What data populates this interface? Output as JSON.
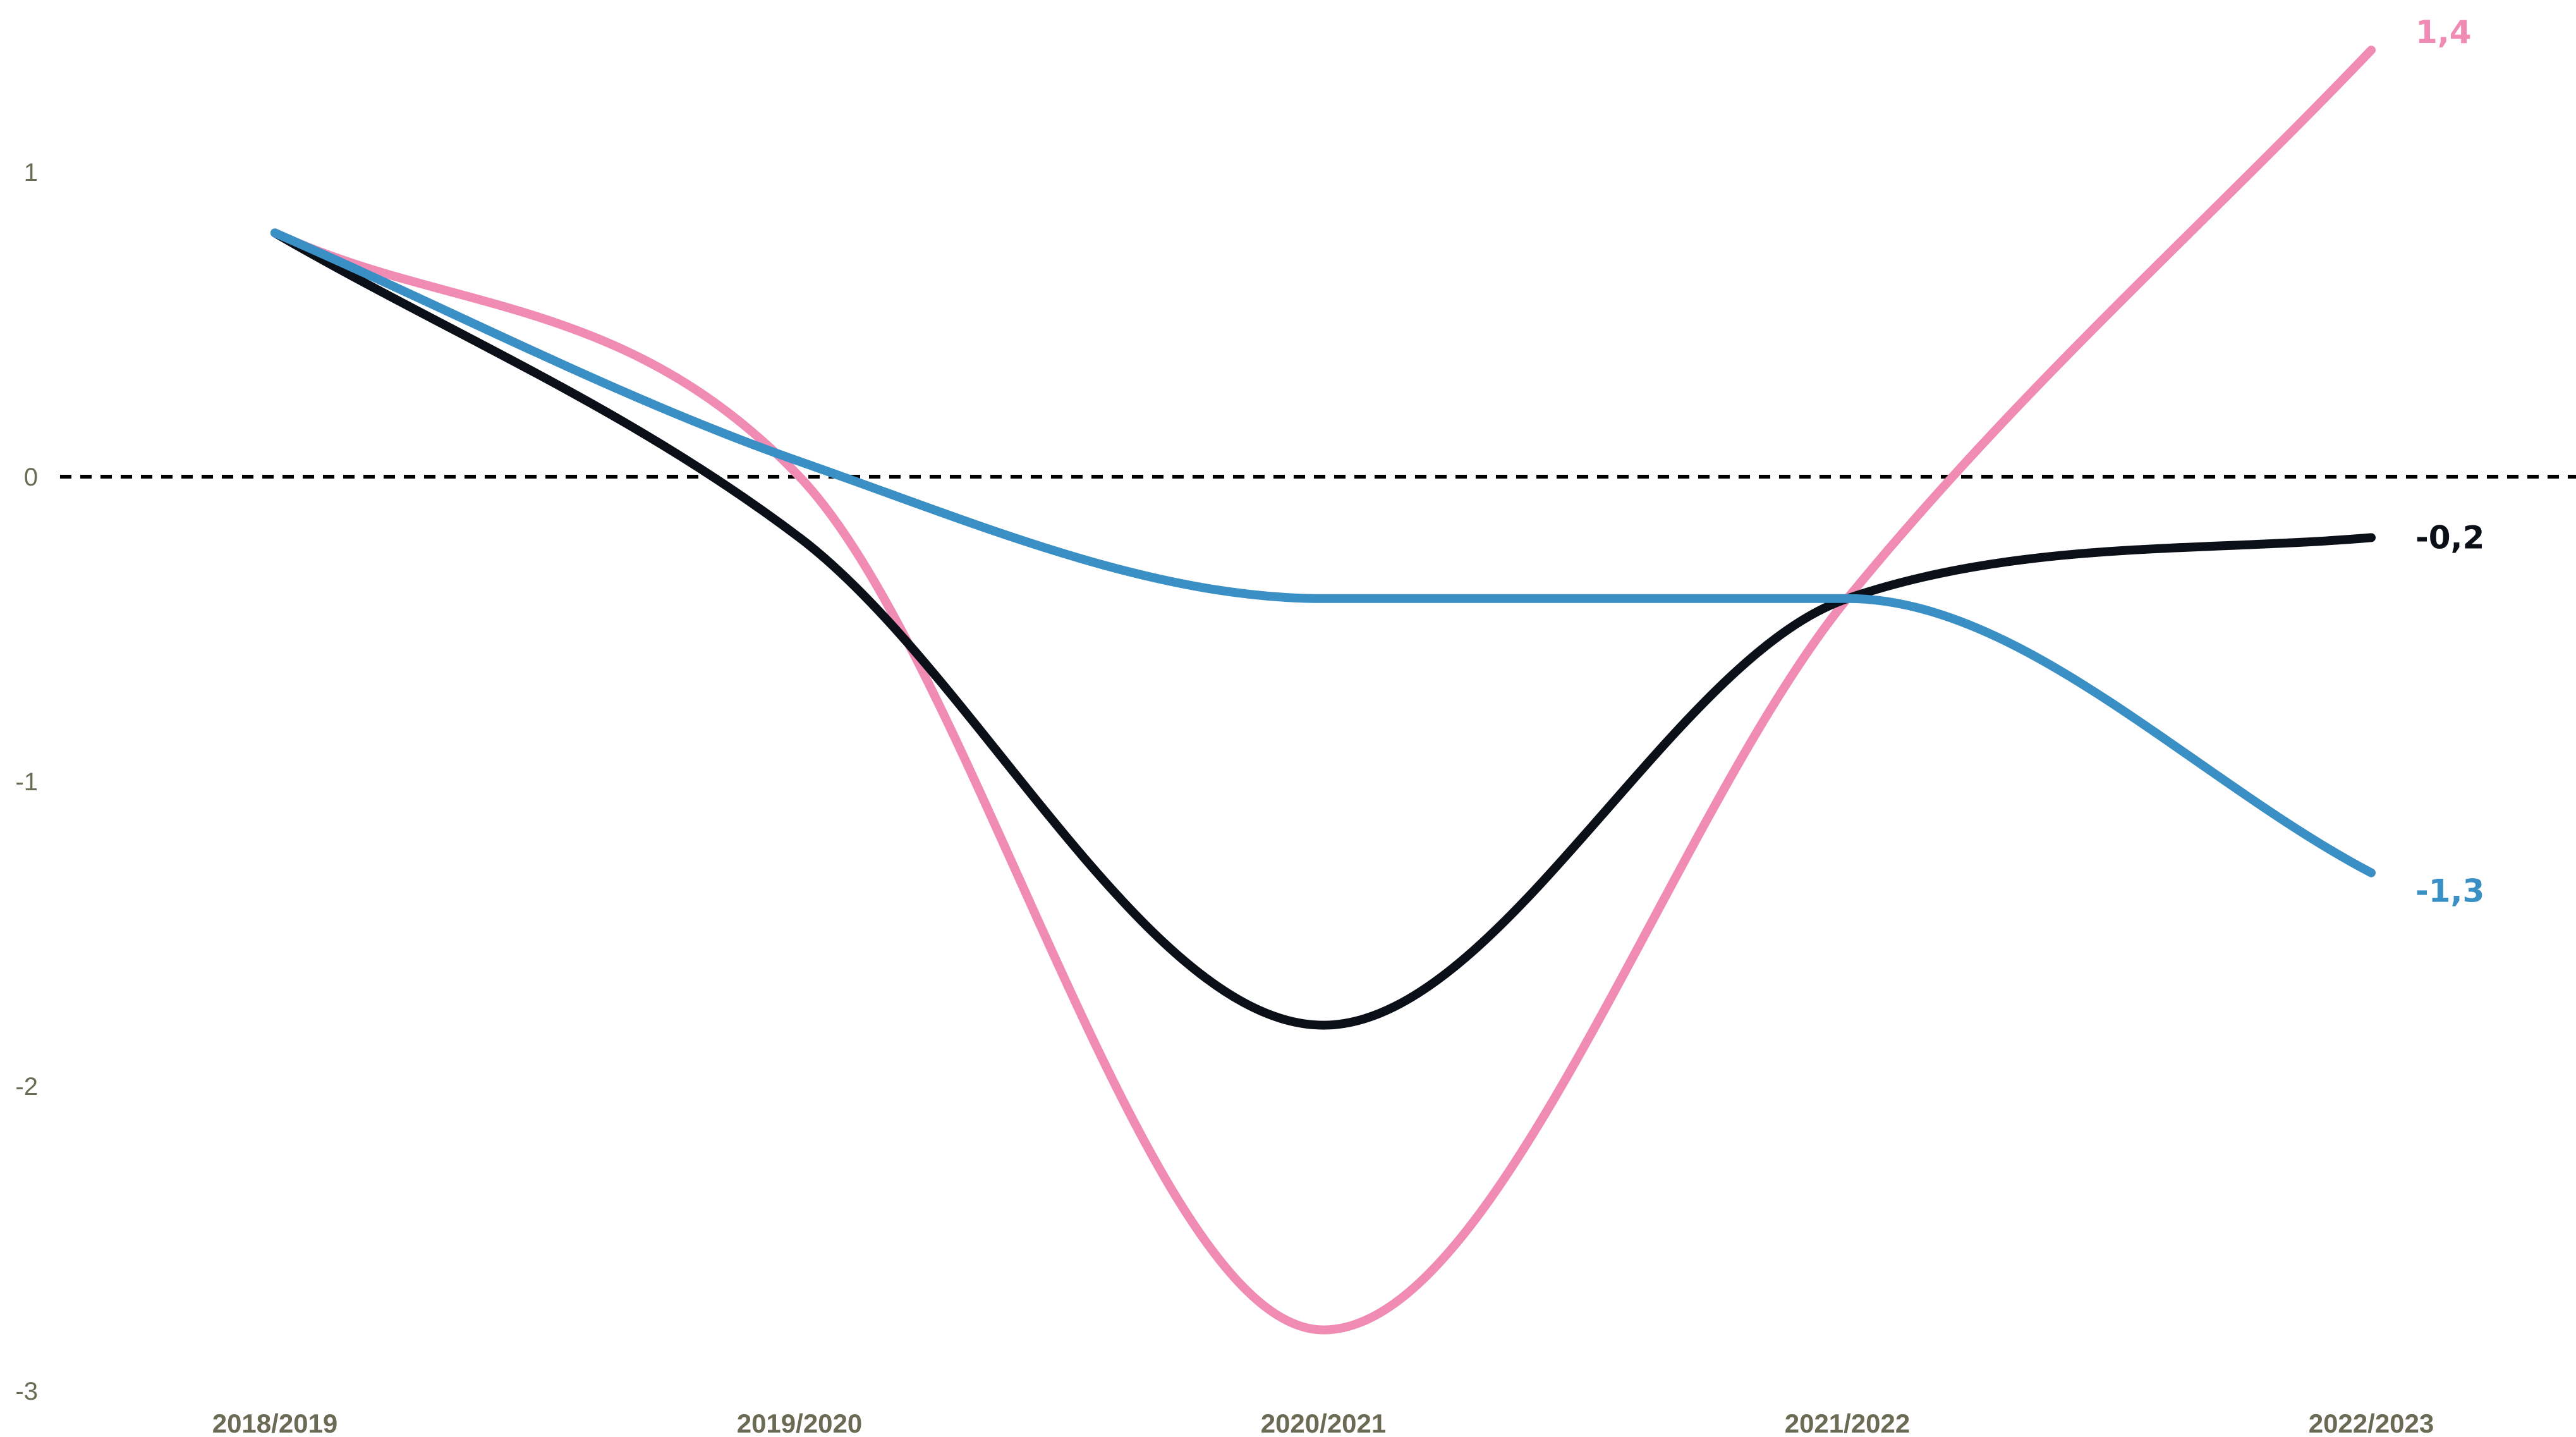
{
  "chart_data": {
    "type": "line",
    "categories": [
      "2018/2019",
      "2019/2020",
      "2020/2021",
      "2021/2022",
      "2022/2023"
    ],
    "ylim": [
      -3,
      1.4
    ],
    "yticks": [
      1,
      0,
      -1,
      -2,
      -3
    ],
    "ytick_labels": [
      "1",
      "0",
      "-1",
      "-2",
      "-3"
    ],
    "reference_line": {
      "value": 0,
      "style": "dashed"
    },
    "grid": false,
    "series": [
      {
        "key": "black",
        "color": "#0b0f18",
        "values": [
          0.8,
          -0.2,
          -1.8,
          -0.4,
          -0.2
        ],
        "end_label": "-0,2"
      },
      {
        "key": "pink",
        "color": "#f08bb4",
        "values": [
          0.8,
          0.0,
          -2.8,
          -0.4,
          1.4
        ],
        "end_label": "1,4"
      },
      {
        "key": "blue",
        "color": "#3a8fc4",
        "values": [
          0.8,
          0.05,
          -0.4,
          -0.4,
          -1.3
        ],
        "end_label": "-1,3"
      }
    ]
  }
}
